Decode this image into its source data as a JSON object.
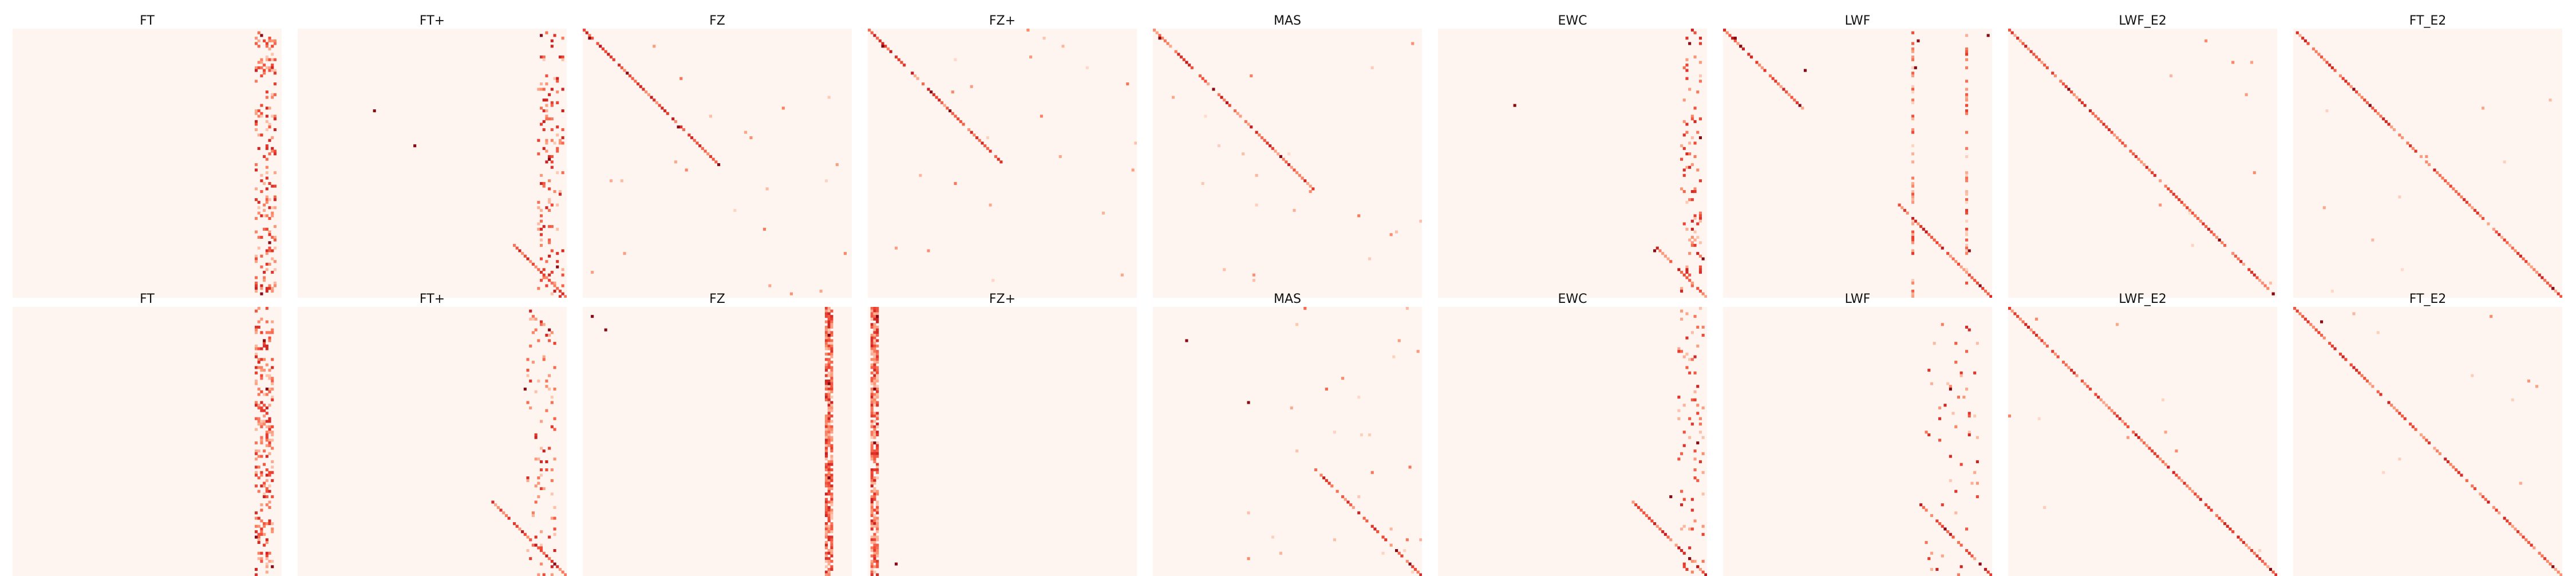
{
  "figure": {
    "colormap": [
      "#fff5f0",
      "#fdcab5",
      "#fc8a6a",
      "#f14432",
      "#bc141a",
      "#67000d"
    ],
    "background": "#fff5f0"
  },
  "chart_data": {
    "type": "heatmap",
    "rows": 2,
    "cols": 9,
    "matrix_size": 100,
    "value_range": [
      0,
      1
    ],
    "grid": false,
    "axes": "off",
    "panels": [
      {
        "title": "FT",
        "row": 0,
        "col": 0,
        "pattern": "vertical-band",
        "band_center": 0.93,
        "band_width": 0.06,
        "density": 0.55,
        "strong_points": [
          [
            0.79,
            0.95
          ],
          [
            0.98,
            0.92
          ],
          [
            0.02,
            0.92
          ]
        ]
      },
      {
        "title": "FT+",
        "row": 0,
        "col": 1,
        "pattern": "vertical-band+lower-diagonal",
        "band_center": 0.93,
        "band_width": 0.08,
        "density": 0.35,
        "diag_start": 0.8,
        "strong_points": [
          [
            0.3,
            0.29
          ],
          [
            0.43,
            0.43
          ],
          [
            0.48,
            0.93
          ],
          [
            0.88,
            0.96
          ],
          [
            0.02,
            0.9
          ]
        ]
      },
      {
        "title": "FZ",
        "row": 0,
        "col": 2,
        "pattern": "upper-diagonal+scatter",
        "diag_end": 0.5,
        "density": 0.08,
        "strong_points": [
          [
            0.03,
            0.02
          ],
          [
            0.16,
            0.16
          ],
          [
            0.36,
            0.35
          ],
          [
            0.5,
            0.5
          ]
        ]
      },
      {
        "title": "FZ+",
        "row": 0,
        "col": 3,
        "pattern": "upper-diagonal+scatter",
        "diag_end": 0.5,
        "density": 0.08,
        "strong_points": [
          [
            0.06,
            0.05
          ],
          [
            0.23,
            0.23
          ],
          [
            0.3,
            0.3
          ]
        ]
      },
      {
        "title": "MAS",
        "row": 0,
        "col": 4,
        "pattern": "upper-diagonal+scatter",
        "diag_end": 0.6,
        "density": 0.08,
        "strong_points": [
          [
            0.03,
            0.02
          ],
          [
            0.22,
            0.22
          ],
          [
            0.47,
            0.47
          ]
        ]
      },
      {
        "title": "EWC",
        "row": 0,
        "col": 5,
        "pattern": "vertical-band+lower-diagonal",
        "band_center": 0.93,
        "band_width": 0.06,
        "density": 0.3,
        "diag_start": 0.8,
        "strong_points": [
          [
            0.29,
            0.29
          ],
          [
            0.05,
            0.93
          ],
          [
            0.4,
            0.97
          ],
          [
            0.82,
            0.8
          ],
          [
            0.85,
            0.98
          ]
        ]
      },
      {
        "title": "LWF",
        "row": 0,
        "col": 6,
        "pattern": "dual-diagonal+columns",
        "density": 0.25,
        "strong_points": [
          [
            0.03,
            0.04
          ],
          [
            0.06,
            0.06
          ],
          [
            0.15,
            0.3
          ],
          [
            0.29,
            0.29
          ],
          [
            0.04,
            0.72
          ],
          [
            0.02,
            0.98
          ],
          [
            0.14,
            0.71
          ],
          [
            0.82,
            0.91
          ],
          [
            0.95,
            0.95
          ]
        ]
      },
      {
        "title": "LWF_E2",
        "row": 0,
        "col": 7,
        "pattern": "full-diagonal",
        "density": 0.02,
        "strong_points": [
          [
            0.22,
            0.22
          ],
          [
            0.78,
            0.78
          ],
          [
            0.98,
            0.98
          ]
        ]
      },
      {
        "title": "FT_E2",
        "row": 0,
        "col": 8,
        "pattern": "full-diagonal",
        "density": 0.02,
        "strong_points": [
          [
            0.22,
            0.22
          ],
          [
            0.29,
            0.29
          ],
          [
            0.96,
            0.96
          ]
        ]
      },
      {
        "title": "FT",
        "row": 1,
        "col": 0,
        "pattern": "vertical-band",
        "band_center": 0.93,
        "band_width": 0.05,
        "density": 0.65,
        "strong_points": [
          [
            0.12,
            0.93
          ],
          [
            0.3,
            0.94
          ],
          [
            0.85,
            0.9
          ],
          [
            0.96,
            0.96
          ]
        ]
      },
      {
        "title": "FT+",
        "row": 1,
        "col": 1,
        "pattern": "vertical-band+lower-diagonal",
        "band_center": 0.9,
        "band_width": 0.1,
        "density": 0.3,
        "diag_start": 0.72,
        "strong_points": [
          [
            0.08,
            0.93
          ],
          [
            0.3,
            0.84
          ],
          [
            0.95,
            0.95
          ]
        ]
      },
      {
        "title": "FZ",
        "row": 1,
        "col": 2,
        "pattern": "vertical-column",
        "band_center": 0.91,
        "band_width": 0.02,
        "density": 0.8,
        "strong_points": [
          [
            0.03,
            0.03
          ],
          [
            0.08,
            0.08
          ],
          [
            0.1,
            0.91
          ],
          [
            0.28,
            0.91
          ],
          [
            0.63,
            0.91
          ]
        ]
      },
      {
        "title": "FZ+",
        "row": 1,
        "col": 3,
        "pattern": "vertical-column",
        "band_center": 0.02,
        "band_width": 0.02,
        "density": 0.8,
        "strong_points": [
          [
            0.03,
            0.03
          ],
          [
            0.3,
            0.02
          ],
          [
            0.5,
            0.02
          ],
          [
            0.95,
            0.1
          ]
        ]
      },
      {
        "title": "MAS",
        "row": 1,
        "col": 4,
        "pattern": "lower-diagonal+scatter",
        "diag_start": 0.6,
        "density": 0.12,
        "strong_points": [
          [
            0.12,
            0.12
          ],
          [
            0.35,
            0.35
          ],
          [
            0.9,
            0.9
          ],
          [
            0.95,
            0.95
          ]
        ]
      },
      {
        "title": "EWC",
        "row": 1,
        "col": 5,
        "pattern": "vertical-band+lower-diagonal",
        "band_center": 0.93,
        "band_width": 0.08,
        "density": 0.25,
        "diag_start": 0.72,
        "strong_points": [
          [
            0.5,
            0.96
          ],
          [
            0.7,
            0.86
          ],
          [
            0.93,
            0.93
          ]
        ]
      },
      {
        "title": "LWF",
        "row": 1,
        "col": 6,
        "pattern": "vertical-band+lower-diagonal",
        "band_center": 0.85,
        "band_width": 0.2,
        "density": 0.15,
        "diag_start": 0.72,
        "strong_points": [
          [
            0.3,
            0.84
          ],
          [
            0.82,
            0.82
          ],
          [
            0.95,
            0.95
          ]
        ]
      },
      {
        "title": "LWF_E2",
        "row": 1,
        "col": 7,
        "pattern": "full-diagonal",
        "density": 0.02,
        "strong_points": [
          [
            0.97,
            0.97
          ]
        ]
      },
      {
        "title": "FT_E2",
        "row": 1,
        "col": 8,
        "pattern": "full-diagonal",
        "density": 0.02,
        "strong_points": [
          [
            0.05,
            0.1
          ],
          [
            0.96,
            0.96
          ]
        ]
      }
    ]
  }
}
